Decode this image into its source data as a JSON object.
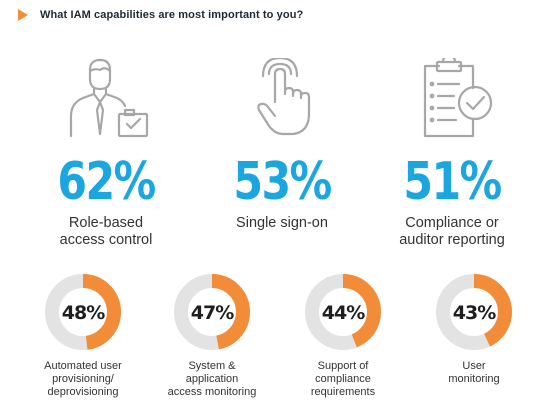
{
  "header": {
    "title": "What IAM capabilities are most important to you?"
  },
  "colors": {
    "accent_blue": "#1ca6df",
    "accent_orange": "#f28c38",
    "ring_gray": "#e3e3e3",
    "icon_gray": "#a7a7a7"
  },
  "chart_data": {
    "type": "bar",
    "title": "What IAM capabilities are most important to you?",
    "unit": "%",
    "categories": [
      "Role-based access control",
      "Single sign-on",
      "Compliance or auditor reporting",
      "Automated user provisioning/ deprovisioning",
      "System & application access monitoring",
      "Support of compliance requirements",
      "User monitoring"
    ],
    "values": [
      62,
      53,
      51,
      48,
      47,
      44,
      43
    ]
  },
  "top_stats": [
    {
      "value": "62%",
      "label_lines": [
        "Role-based",
        "access control"
      ],
      "icon": "user-with-checklist-icon"
    },
    {
      "value": "53%",
      "label_lines": [
        "Single sign-on"
      ],
      "icon": "hand-tap-icon"
    },
    {
      "value": "51%",
      "label_lines": [
        "Compliance or",
        "auditor reporting"
      ],
      "icon": "clipboard-check-icon"
    }
  ],
  "donuts": [
    {
      "value": "48%",
      "percent": 48,
      "label_lines": [
        "Automated user",
        "provisioning/",
        "deprovisioning"
      ]
    },
    {
      "value": "47%",
      "percent": 47,
      "label_lines": [
        "System &",
        "application",
        "access monitoring"
      ]
    },
    {
      "value": "44%",
      "percent": 44,
      "label_lines": [
        "Support of",
        "compliance",
        "requirements"
      ]
    },
    {
      "value": "43%",
      "percent": 43,
      "label_lines": [
        "User",
        "monitoring"
      ]
    }
  ]
}
